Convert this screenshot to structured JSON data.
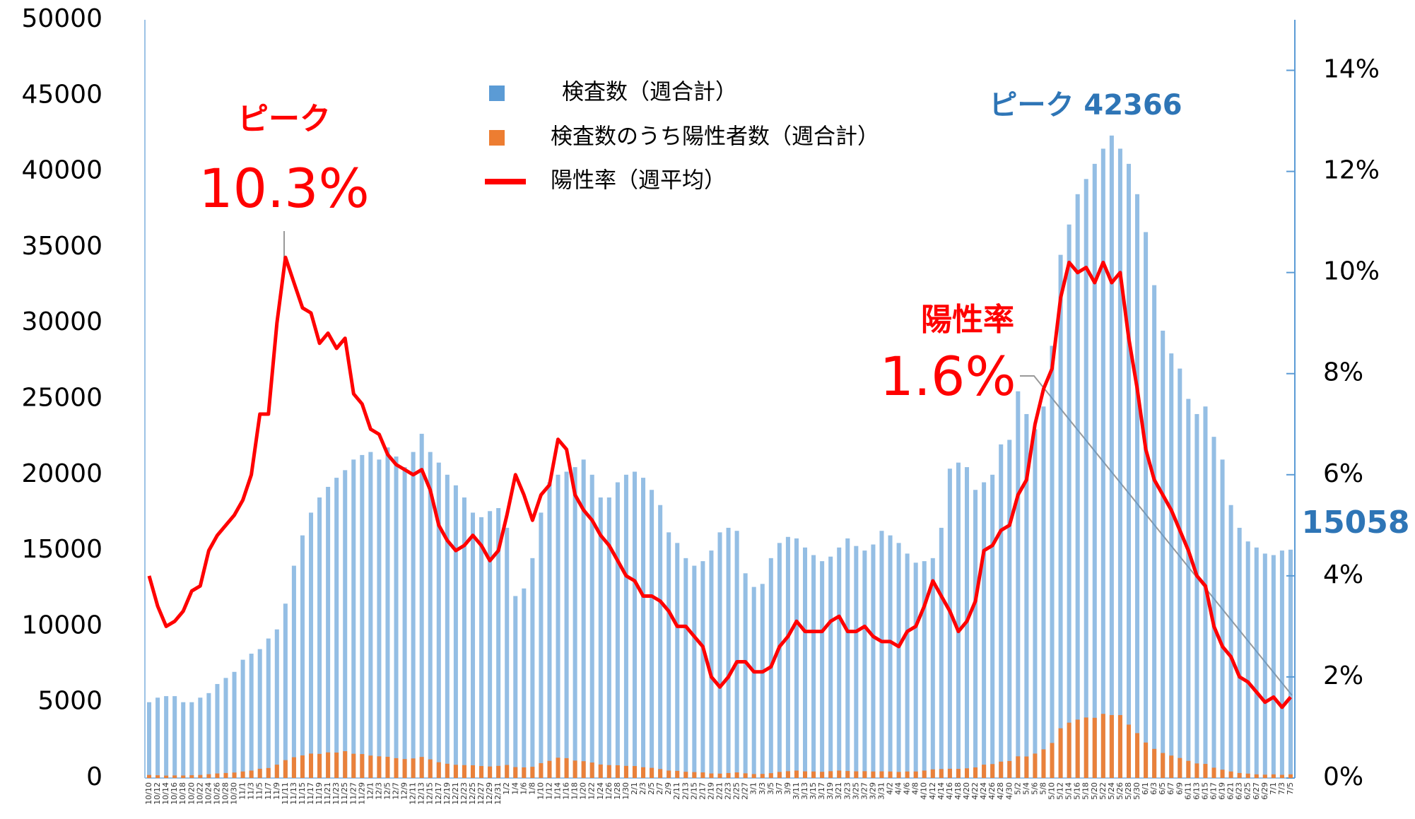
{
  "chart_data": {
    "type": "bar",
    "categories": [
      "10/10",
      "10/12",
      "10/14",
      "10/16",
      "10/18",
      "10/20",
      "10/22",
      "10/24",
      "10/26",
      "10/28",
      "10/30",
      "11/1",
      "11/3",
      "11/5",
      "11/7",
      "11/9",
      "11/11",
      "11/13",
      "11/15",
      "11/17",
      "11/19",
      "11/21",
      "11/23",
      "11/25",
      "11/27",
      "11/29",
      "12/1",
      "12/3",
      "12/5",
      "12/7",
      "12/9",
      "12/11",
      "12/13",
      "12/15",
      "12/17",
      "12/19",
      "12/21",
      "12/23",
      "12/25",
      "12/27",
      "12/29",
      "12/31",
      "1/2",
      "1/4",
      "1/6",
      "1/8",
      "1/10",
      "1/12",
      "1/14",
      "1/16",
      "1/18",
      "1/20",
      "1/22",
      "1/24",
      "1/26",
      "1/28",
      "1/30",
      "2/1",
      "2/3",
      "2/5",
      "2/7",
      "2/9",
      "2/11",
      "2/13",
      "2/15",
      "2/17",
      "2/19",
      "2/21",
      "2/23",
      "2/25",
      "2/27",
      "3/1",
      "3/3",
      "3/5",
      "3/7",
      "3/9",
      "3/11",
      "3/13",
      "3/15",
      "3/17",
      "3/19",
      "3/21",
      "3/23",
      "3/25",
      "3/27",
      "3/29",
      "3/31",
      "4/2",
      "4/4",
      "4/6",
      "4/8",
      "4/10",
      "4/12",
      "4/14",
      "4/16",
      "4/18",
      "4/20",
      "4/22",
      "4/24",
      "4/26",
      "4/28",
      "4/30",
      "5/2",
      "5/4",
      "5/6",
      "5/8",
      "5/10",
      "5/12",
      "5/14",
      "5/16",
      "5/18",
      "5/20",
      "5/22",
      "5/24",
      "5/26",
      "5/28",
      "5/30",
      "6/1",
      "6/3",
      "6/5",
      "6/7",
      "6/9",
      "6/11",
      "6/13",
      "6/15",
      "6/17",
      "6/19",
      "6/21",
      "6/23",
      "6/25",
      "6/27",
      "6/29",
      "7/1",
      "7/3",
      "7/5"
    ],
    "series": [
      {
        "name": "検査数（週合計）",
        "type": "bar",
        "color": "#5b9bd5",
        "values": [
          5000,
          5300,
          5400,
          5400,
          5000,
          5000,
          5300,
          5600,
          6200,
          6600,
          7000,
          7800,
          8200,
          8500,
          9200,
          9800,
          11500,
          14000,
          16000,
          17500,
          18500,
          19200,
          19800,
          20300,
          21000,
          21300,
          21500,
          21000,
          21800,
          21200,
          20500,
          21500,
          22700,
          21500,
          20800,
          20000,
          19300,
          18500,
          17500,
          17200,
          17600,
          17800,
          16500,
          12000,
          12500,
          14500,
          17500,
          19500,
          20000,
          20200,
          20500,
          21000,
          20000,
          18500,
          18500,
          19500,
          20000,
          20200,
          19800,
          19000,
          18000,
          16200,
          15500,
          14500,
          14000,
          14300,
          15000,
          16200,
          16500,
          16300,
          13500,
          12600,
          12800,
          14500,
          15500,
          15900,
          15800,
          15200,
          14700,
          14300,
          14600,
          15200,
          15800,
          15300,
          15000,
          15400,
          16300,
          16000,
          15500,
          14800,
          14200,
          14300,
          14500,
          16500,
          20400,
          20800,
          20500,
          19000,
          19500,
          20000,
          22000,
          22300,
          25500,
          24000,
          23000,
          24500,
          28500,
          34500,
          36500,
          38500,
          39500,
          40500,
          41500,
          42366,
          41500,
          40500,
          38500,
          36000,
          32500,
          29500,
          28000,
          27000,
          25000,
          24000,
          24500,
          22500,
          21000,
          18000,
          16500,
          15600,
          15200,
          14800,
          14700,
          15000,
          15058
        ]
      },
      {
        "name": "検査数のうち陽性者数（週合計）",
        "type": "bar",
        "color": "#ed7d31",
        "values": [
          200,
          180,
          160,
          170,
          165,
          185,
          200,
          250,
          300,
          330,
          360,
          430,
          490,
          610,
          660,
          880,
          1180,
          1370,
          1490,
          1610,
          1590,
          1690,
          1680,
          1770,
          1600,
          1580,
          1480,
          1430,
          1400,
          1310,
          1250,
          1290,
          1390,
          1230,
          1040,
          940,
          870,
          850,
          840,
          790,
          760,
          800,
          860,
          720,
          700,
          740,
          980,
          1130,
          1340,
          1310,
          1150,
          1110,
          1020,
          890,
          850,
          840,
          800,
          790,
          710,
          670,
          590,
          490,
          470,
          410,
          390,
          370,
          300,
          290,
          330,
          370,
          310,
          260,
          270,
          320,
          400,
          450,
          490,
          440,
          430,
          410,
          450,
          490,
          460,
          440,
          450,
          430,
          440,
          430,
          400,
          430,
          430,
          490,
          570,
          590,
          610,
          600,
          640,
          700,
          880,
          920,
          1080,
          1120,
          1430,
          1420,
          1610,
          1890,
          2310,
          3280,
          3650,
          3850,
          3990,
          3970,
          4230,
          4150,
          4150,
          3520,
          2960,
          2340,
          1920,
          1650,
          1480,
          1320,
          1130,
          960,
          930,
          680,
          550,
          430,
          330,
          290,
          240,
          220,
          240,
          210,
          240
        ]
      },
      {
        "name": "陽性率（週平均）",
        "type": "line",
        "axis": "y2",
        "color": "#ff0000",
        "values": [
          4.0,
          3.4,
          3.0,
          3.1,
          3.3,
          3.7,
          3.8,
          4.5,
          4.8,
          5.0,
          5.2,
          5.5,
          6.0,
          7.2,
          7.2,
          9.0,
          10.3,
          9.8,
          9.3,
          9.2,
          8.6,
          8.8,
          8.5,
          8.7,
          7.6,
          7.4,
          6.9,
          6.8,
          6.4,
          6.2,
          6.1,
          6.0,
          6.1,
          5.7,
          5.0,
          4.7,
          4.5,
          4.6,
          4.8,
          4.6,
          4.3,
          4.5,
          5.2,
          6.0,
          5.6,
          5.1,
          5.6,
          5.8,
          6.7,
          6.5,
          5.6,
          5.3,
          5.1,
          4.8,
          4.6,
          4.3,
          4.0,
          3.9,
          3.6,
          3.6,
          3.5,
          3.3,
          3.0,
          3.0,
          2.8,
          2.6,
          2.0,
          1.8,
          2.0,
          2.3,
          2.3,
          2.1,
          2.1,
          2.2,
          2.6,
          2.8,
          3.1,
          2.9,
          2.9,
          2.9,
          3.1,
          3.2,
          2.9,
          2.9,
          3.0,
          2.8,
          2.7,
          2.7,
          2.6,
          2.9,
          3.0,
          3.4,
          3.9,
          3.6,
          3.3,
          2.9,
          3.1,
          3.5,
          4.5,
          4.6,
          4.9,
          5.0,
          5.6,
          5.9,
          7.0,
          7.7,
          8.1,
          9.5,
          10.2,
          10.0,
          10.1,
          9.8,
          10.2,
          9.8,
          10.0,
          8.7,
          7.7,
          6.5,
          5.9,
          5.6,
          5.3,
          4.9,
          4.5,
          4.0,
          3.8,
          3.0,
          2.6,
          2.4,
          2.0,
          1.9,
          1.7,
          1.5,
          1.6,
          1.4,
          1.6
        ]
      }
    ],
    "ylim": [
      0,
      50000
    ],
    "yticks": [
      0,
      5000,
      10000,
      15000,
      20000,
      25000,
      30000,
      35000,
      40000,
      45000,
      50000
    ],
    "y2lim": [
      0,
      15
    ],
    "y2ticks": [
      {
        "value": 0,
        "label": "0%"
      },
      {
        "value": 2,
        "label": "2%"
      },
      {
        "value": 4,
        "label": "4%"
      },
      {
        "value": 6,
        "label": "6%"
      },
      {
        "value": 8,
        "label": "8%"
      },
      {
        "value": 10,
        "label": "10%"
      },
      {
        "value": 12,
        "label": "12%"
      },
      {
        "value": 14,
        "label": "14%"
      }
    ],
    "annotations": [
      "ピーク",
      "10.3%",
      "ピーク 42366",
      "陽性率",
      "1.6%",
      "15058"
    ]
  }
}
